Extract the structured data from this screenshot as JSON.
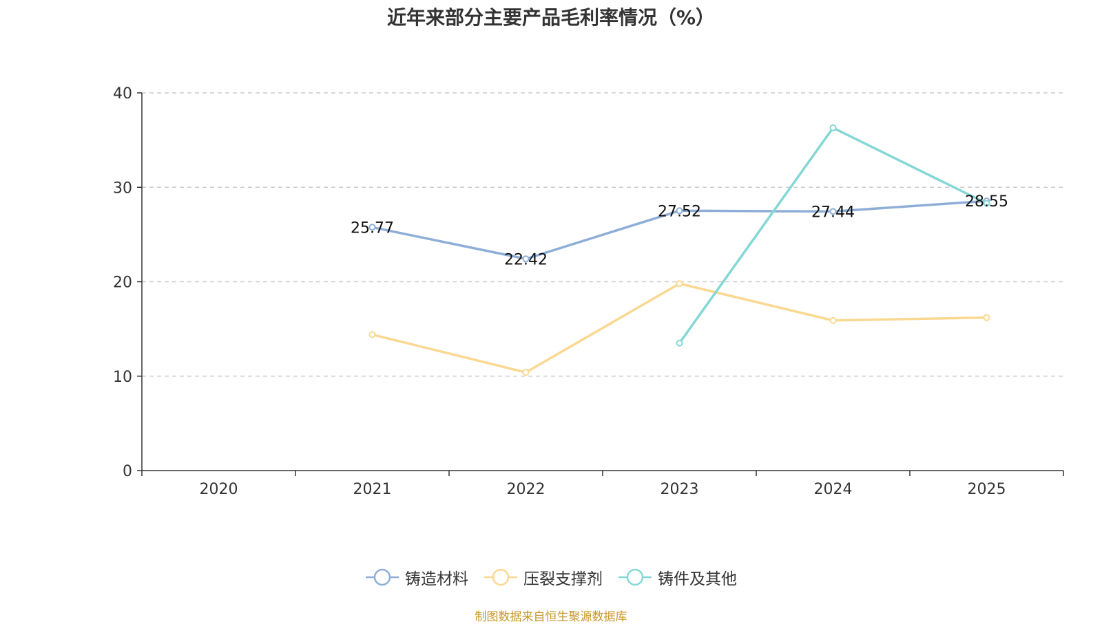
{
  "chart_data": {
    "type": "line",
    "title": "近年来部分主要产品毛利率情况（%）",
    "categories": [
      "2020",
      "2021",
      "2022",
      "2023",
      "2024",
      "2025"
    ],
    "ylim": [
      0,
      40
    ],
    "yticks": [
      0,
      10,
      20,
      30,
      40
    ],
    "grid": "horizontal-dashed",
    "legend_position": "bottom-center",
    "series": [
      {
        "name": "铸造材料",
        "color": "#8eaed8",
        "values": [
          null,
          25.77,
          22.42,
          27.52,
          27.44,
          28.55
        ],
        "show_labels": true
      },
      {
        "name": "压裂支撑剂",
        "color": "#fad891",
        "values": [
          null,
          14.4,
          10.4,
          19.8,
          15.9,
          16.2
        ],
        "show_labels": false
      },
      {
        "name": "铸件及其他",
        "color": "#85d7d6",
        "values": [
          null,
          null,
          null,
          13.5,
          36.3,
          28.3
        ],
        "show_labels": false
      }
    ]
  },
  "source_note": "制图数据来自恒生聚源数据库"
}
